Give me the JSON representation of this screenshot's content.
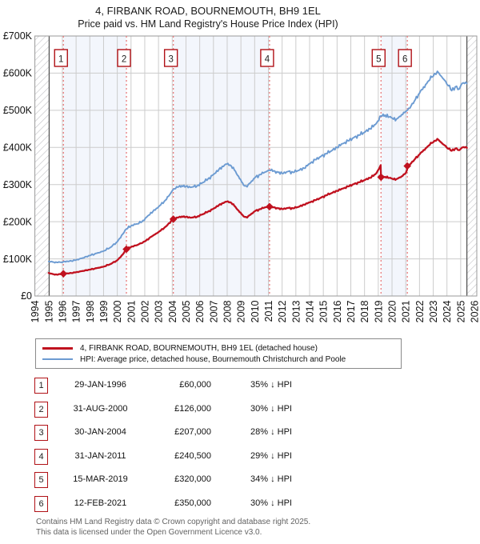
{
  "footer": {
    "line1": "Contains HM Land Registry data © Crown copyright and database right 2025.",
    "line2": "This data is licensed under the Open Government Licence v3.0."
  },
  "chart_data": {
    "type": "line",
    "title": "4, FIRBANK ROAD, BOURNEMOUTH, BH9 1EL",
    "subtitle": "Price paid vs. HM Land Registry's House Price Index (HPI)",
    "ylabel_ticks": [
      "£0",
      "£100K",
      "£200K",
      "£300K",
      "£400K",
      "£500K",
      "£600K",
      "£700K"
    ],
    "ylim_gbp": [
      0,
      700000
    ],
    "x_ticks": [
      1994,
      1995,
      1996,
      1997,
      1998,
      1999,
      2000,
      2001,
      2002,
      2003,
      2004,
      2005,
      2006,
      2007,
      2008,
      2009,
      2010,
      2011,
      2012,
      2013,
      2014,
      2015,
      2016,
      2017,
      2018,
      2019,
      2020,
      2021,
      2022,
      2023,
      2024,
      2025,
      2026
    ],
    "grid": true,
    "legend_position": "below",
    "hatch_regions_years": [
      [
        1994.0,
        1995.04
      ],
      [
        2025.45,
        2026.25
      ]
    ],
    "shaded_bands_years": [
      [
        1996.077,
        2000.664
      ],
      [
        2004.079,
        2011.082
      ],
      [
        2019.2,
        2021.115
      ]
    ],
    "colors": {
      "property_line": "#c0111f",
      "hpi_line": "#6c9bd2",
      "sale_line": "#e87b7b",
      "band": "#f3f6fc",
      "grid": "#cccccc",
      "plot_border": "#9a9a9a",
      "hatch_line": "#c2c2c6",
      "hatch_edge": "#555555",
      "box_border": "#b01116",
      "axis_text": "#111111"
    },
    "series": [
      {
        "name": "HPI: Average price, detached house, Bournemouth Christchurch and Poole",
        "color": "#6c9bd2",
        "width": 1.9,
        "jitter": 1.0,
        "points_year_gbpk": [
          [
            1995.0,
            93
          ],
          [
            1995.3,
            91.5
          ],
          [
            1995.6,
            90.5
          ],
          [
            1995.9,
            91
          ],
          [
            1996.077,
            92.3
          ],
          [
            1996.5,
            93.5
          ],
          [
            1997.0,
            97
          ],
          [
            1997.5,
            102.5
          ],
          [
            1998.0,
            109
          ],
          [
            1998.5,
            115
          ],
          [
            1999.0,
            121
          ],
          [
            1999.5,
            131
          ],
          [
            2000.0,
            146
          ],
          [
            2000.4,
            167
          ],
          [
            2000.664,
            180
          ],
          [
            2001.0,
            189
          ],
          [
            2001.4,
            194
          ],
          [
            2001.8,
            200
          ],
          [
            2002.2,
            215
          ],
          [
            2002.6,
            228
          ],
          [
            2003.0,
            240
          ],
          [
            2003.5,
            258
          ],
          [
            2003.8,
            272
          ],
          [
            2004.079,
            287.5
          ],
          [
            2004.4,
            293
          ],
          [
            2004.7,
            297
          ],
          [
            2005.0,
            295
          ],
          [
            2005.4,
            293
          ],
          [
            2005.8,
            296
          ],
          [
            2006.2,
            305
          ],
          [
            2006.6,
            315
          ],
          [
            2007.0,
            327
          ],
          [
            2007.4,
            341
          ],
          [
            2007.8,
            352
          ],
          [
            2008.05,
            357
          ],
          [
            2008.3,
            350
          ],
          [
            2008.6,
            336
          ],
          [
            2008.9,
            316
          ],
          [
            2009.2,
            298
          ],
          [
            2009.45,
            294
          ],
          [
            2009.7,
            305
          ],
          [
            2010.0,
            318
          ],
          [
            2010.4,
            327
          ],
          [
            2010.8,
            334
          ],
          [
            2011.082,
            338.7
          ],
          [
            2011.4,
            337
          ],
          [
            2011.7,
            333
          ],
          [
            2012.0,
            330
          ],
          [
            2012.4,
            335
          ],
          [
            2012.8,
            333
          ],
          [
            2013.2,
            338
          ],
          [
            2013.6,
            344
          ],
          [
            2014.0,
            356
          ],
          [
            2014.4,
            367
          ],
          [
            2014.8,
            375
          ],
          [
            2015.2,
            383
          ],
          [
            2015.6,
            391
          ],
          [
            2016.0,
            400
          ],
          [
            2016.4,
            410
          ],
          [
            2016.8,
            418
          ],
          [
            2017.2,
            426
          ],
          [
            2017.6,
            433
          ],
          [
            2018.0,
            441
          ],
          [
            2018.4,
            450
          ],
          [
            2018.8,
            462
          ],
          [
            2019.2,
            484.8
          ],
          [
            2019.5,
            487
          ],
          [
            2019.8,
            482
          ],
          [
            2020.1,
            476
          ],
          [
            2020.4,
            478
          ],
          [
            2020.7,
            488
          ],
          [
            2021.0,
            497
          ],
          [
            2021.115,
            500
          ],
          [
            2021.4,
            513
          ],
          [
            2021.7,
            529
          ],
          [
            2022.0,
            546
          ],
          [
            2022.3,
            563
          ],
          [
            2022.6,
            577
          ],
          [
            2022.9,
            589
          ],
          [
            2023.1,
            599
          ],
          [
            2023.3,
            605
          ],
          [
            2023.5,
            595
          ],
          [
            2023.7,
            586
          ],
          [
            2023.9,
            578
          ],
          [
            2024.1,
            566
          ],
          [
            2024.35,
            553
          ],
          [
            2024.6,
            563
          ],
          [
            2024.8,
            556
          ],
          [
            2025.0,
            566
          ],
          [
            2025.2,
            574
          ],
          [
            2025.45,
            572
          ]
        ]
      },
      {
        "name": "4, FIRBANK ROAD, BOURNEMOUTH, BH9 1EL (detached house)",
        "color": "#c0111f",
        "width": 2.3,
        "jitter": 0.7,
        "points_year_gbpk": [
          [
            1995.0,
            62
          ],
          [
            1995.3,
            59
          ],
          [
            1995.6,
            57.5
          ],
          [
            1995.85,
            58.5
          ],
          [
            1996.077,
            60
          ],
          [
            1996.5,
            61
          ],
          [
            1997.0,
            64
          ],
          [
            1997.5,
            67.5
          ],
          [
            1998.0,
            71
          ],
          [
            1998.5,
            75
          ],
          [
            1999.0,
            79
          ],
          [
            1999.5,
            86
          ],
          [
            2000.0,
            96
          ],
          [
            2000.4,
            112
          ],
          [
            2000.664,
            126
          ],
          [
            2001.0,
            132
          ],
          [
            2001.5,
            138
          ],
          [
            2002.0,
            147
          ],
          [
            2002.5,
            160
          ],
          [
            2003.0,
            172
          ],
          [
            2003.5,
            186
          ],
          [
            2004.079,
            207
          ],
          [
            2004.4,
            211
          ],
          [
            2004.7,
            214
          ],
          [
            2005.0,
            213
          ],
          [
            2005.4,
            211
          ],
          [
            2005.8,
            213
          ],
          [
            2006.2,
            220
          ],
          [
            2006.6,
            227
          ],
          [
            2007.0,
            235
          ],
          [
            2007.4,
            245
          ],
          [
            2007.8,
            252
          ],
          [
            2008.05,
            255
          ],
          [
            2008.3,
            251
          ],
          [
            2008.6,
            240
          ],
          [
            2008.9,
            226
          ],
          [
            2009.2,
            214
          ],
          [
            2009.45,
            211
          ],
          [
            2009.7,
            219
          ],
          [
            2010.0,
            228
          ],
          [
            2010.4,
            234
          ],
          [
            2010.8,
            239
          ],
          [
            2011.082,
            240.5
          ],
          [
            2011.4,
            239
          ],
          [
            2011.7,
            236
          ],
          [
            2012.0,
            234
          ],
          [
            2012.4,
            237
          ],
          [
            2012.8,
            236
          ],
          [
            2013.2,
            240
          ],
          [
            2013.6,
            246
          ],
          [
            2014.0,
            252
          ],
          [
            2014.4,
            258
          ],
          [
            2014.8,
            264
          ],
          [
            2015.2,
            271
          ],
          [
            2015.6,
            277
          ],
          [
            2016.0,
            283
          ],
          [
            2016.4,
            289
          ],
          [
            2016.8,
            295
          ],
          [
            2017.2,
            301
          ],
          [
            2017.6,
            306
          ],
          [
            2018.0,
            312
          ],
          [
            2018.4,
            318
          ],
          [
            2018.8,
            328
          ],
          [
            2019.05,
            342
          ],
          [
            2019.17,
            352
          ],
          [
            2019.2,
            320
          ],
          [
            2019.5,
            321
          ],
          [
            2019.8,
            318
          ],
          [
            2020.1,
            314
          ],
          [
            2020.4,
            316
          ],
          [
            2020.7,
            322
          ],
          [
            2021.0,
            331
          ],
          [
            2021.1,
            340
          ],
          [
            2021.115,
            350
          ],
          [
            2021.4,
            358
          ],
          [
            2021.7,
            370
          ],
          [
            2022.0,
            381
          ],
          [
            2022.3,
            393
          ],
          [
            2022.6,
            403
          ],
          [
            2022.9,
            412
          ],
          [
            2023.1,
            418
          ],
          [
            2023.3,
            423
          ],
          [
            2023.5,
            416
          ],
          [
            2023.7,
            409
          ],
          [
            2023.9,
            404
          ],
          [
            2024.1,
            396
          ],
          [
            2024.35,
            391
          ],
          [
            2024.6,
            397
          ],
          [
            2024.8,
            393
          ],
          [
            2025.0,
            396
          ],
          [
            2025.2,
            401
          ],
          [
            2025.45,
            399
          ]
        ]
      }
    ],
    "sales": [
      {
        "n": "1",
        "date": "29-JAN-1996",
        "year": 1996.077,
        "price_gbp": 60000,
        "price_label": "£60,000",
        "vs_hpi": "35% ↓ HPI"
      },
      {
        "n": "2",
        "date": "31-AUG-2000",
        "year": 2000.664,
        "price_gbp": 126000,
        "price_label": "£126,000",
        "vs_hpi": "30% ↓ HPI"
      },
      {
        "n": "3",
        "date": "30-JAN-2004",
        "year": 2004.079,
        "price_gbp": 207000,
        "price_label": "£207,000",
        "vs_hpi": "28% ↓ HPI"
      },
      {
        "n": "4",
        "date": "31-JAN-2011",
        "year": 2011.082,
        "price_gbp": 240500,
        "price_label": "£240,500",
        "vs_hpi": "29% ↓ HPI"
      },
      {
        "n": "5",
        "date": "15-MAR-2019",
        "year": 2019.2,
        "price_gbp": 320000,
        "price_label": "£320,000",
        "vs_hpi": "34% ↓ HPI"
      },
      {
        "n": "6",
        "date": "12-FEB-2021",
        "year": 2021.115,
        "price_gbp": 350000,
        "price_label": "£350,000",
        "vs_hpi": "30% ↓ HPI"
      }
    ]
  }
}
